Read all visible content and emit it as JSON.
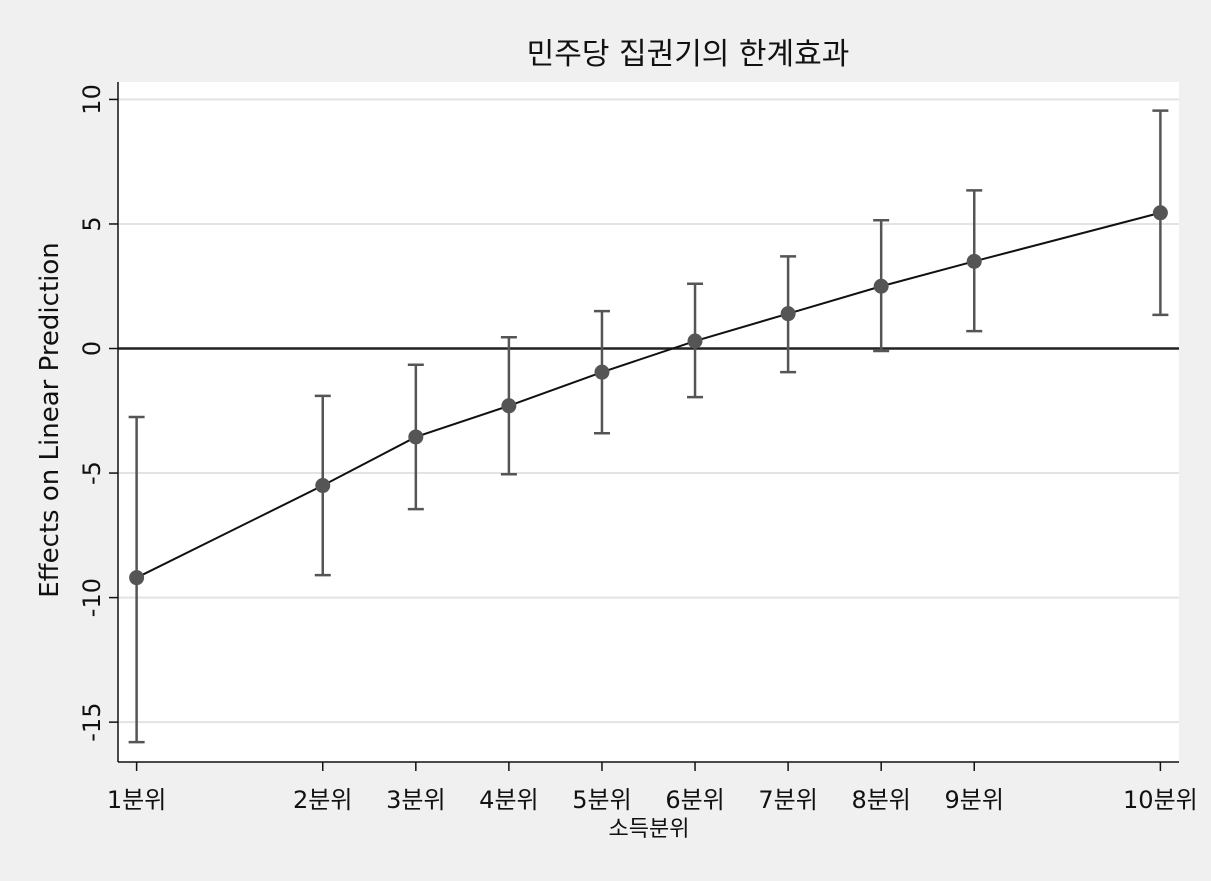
{
  "colors": {
    "background": "#f0f0f0",
    "plot_background": "#ffffff",
    "gridline": "#e3e3e3",
    "marker": "#555555",
    "errorbar": "#555555",
    "line": "#111111",
    "reference_line": "#222222"
  },
  "chart_data": {
    "type": "line",
    "title": "민주당 집권기의 한계효과",
    "xlabel": "소득분위",
    "ylabel": "Effects on Linear Prediction",
    "x": [
      1,
      3,
      4,
      5,
      6,
      7,
      8,
      9,
      10,
      12
    ],
    "categories": [
      "1분위",
      "2분위",
      "3분위",
      "4분위",
      "5분위",
      "6분위",
      "7분위",
      "8분위",
      "9분위",
      "10분위"
    ],
    "series": [
      {
        "values": [
          -9.2,
          -5.5,
          -3.55,
          -2.3,
          -0.95,
          0.3,
          1.4,
          2.5,
          3.5,
          5.45
        ],
        "ci_low": [
          -15.8,
          -9.1,
          -6.45,
          -5.05,
          -3.4,
          -1.95,
          -0.95,
          -0.1,
          0.7,
          1.35
        ],
        "ci_high": [
          -2.75,
          -1.9,
          -0.65,
          0.45,
          1.5,
          2.6,
          3.7,
          5.15,
          6.35,
          9.55
        ]
      }
    ],
    "xlim": [
      0.8,
      12.2
    ],
    "ylim": [
      -16.6,
      10.7
    ],
    "yticks": [
      -15,
      -10,
      -5,
      0,
      5,
      10
    ],
    "reference_line_y": 0,
    "grid": true,
    "legend": "none"
  }
}
